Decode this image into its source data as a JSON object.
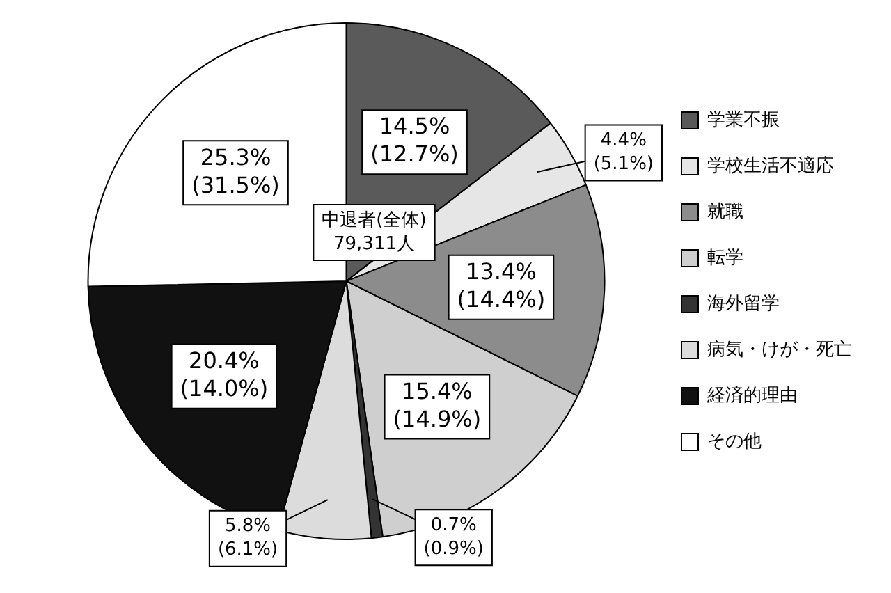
{
  "chart_data": {
    "type": "pie",
    "categories": [
      "学業不振",
      "学校生活不適応",
      "就職",
      "転学",
      "海外留学",
      "病気・けが・死亡",
      "経済的理由",
      "その他"
    ],
    "values": [
      14.5,
      4.4,
      13.4,
      15.4,
      0.7,
      5.8,
      20.4,
      25.3
    ],
    "colors": [
      "#5a5a5a",
      "#e6e6e6",
      "#8c8c8c",
      "#cfcfcf",
      "#333333",
      "#dcdcdc",
      "#111111",
      "#ffffff"
    ],
    "value_labels": [
      "14.5%(12.7%)",
      "4.4%(5.1%)",
      "13.4%(14.4%)",
      "15.4%(14.9%)",
      "0.7%(0.9%)",
      "5.8%(6.1%)",
      "20.4%(14.0%)",
      "25.3%(31.5%)"
    ],
    "annotations": [
      "中退者(全体)\n79,311人"
    ],
    "legend": "right"
  }
}
